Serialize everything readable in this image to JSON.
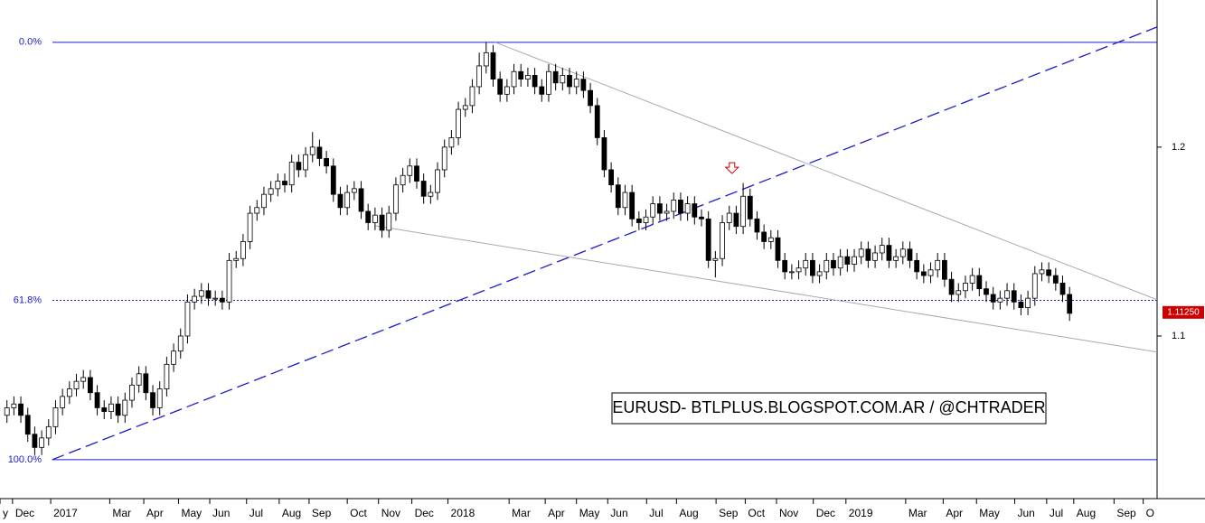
{
  "chart_data": {
    "type": "candlestick",
    "annotation": "EURUSD- BTLPLUS.BLOGSPOT.COM.AR / @CHTRADER",
    "ylim": [
      1.0139,
      1.2779
    ],
    "yticks": [
      1.2,
      1.1
    ],
    "xlim": [
      -1,
      165.6
    ],
    "xticks": [
      {
        "value": -1,
        "label": "y"
      },
      {
        "value": 0.8,
        "label": "Dec"
      },
      {
        "value": 6.3,
        "label": "2017"
      },
      {
        "value": 14.8,
        "label": "Mar"
      },
      {
        "value": 19.7,
        "label": "Apr"
      },
      {
        "value": 24.7,
        "label": "May"
      },
      {
        "value": 29.2,
        "label": "Jun"
      },
      {
        "value": 34.5,
        "label": "Jul"
      },
      {
        "value": 39.2,
        "label": "Aug"
      },
      {
        "value": 43.5,
        "label": "Sep"
      },
      {
        "value": 49.0,
        "label": "Oct"
      },
      {
        "value": 53.5,
        "label": "Nov"
      },
      {
        "value": 58.3,
        "label": "Dec"
      },
      {
        "value": 63.5,
        "label": "2018"
      },
      {
        "value": 72.3,
        "label": "Mar"
      },
      {
        "value": 77.5,
        "label": "Apr"
      },
      {
        "value": 82.0,
        "label": "May"
      },
      {
        "value": 86.5,
        "label": "Jun"
      },
      {
        "value": 92.1,
        "label": "Jul"
      },
      {
        "value": 96.4,
        "label": "Aug"
      },
      {
        "value": 102.1,
        "label": "Sep"
      },
      {
        "value": 106.3,
        "label": "Oct"
      },
      {
        "value": 110.8,
        "label": "Nov"
      },
      {
        "value": 116.1,
        "label": "Dec"
      },
      {
        "value": 120.8,
        "label": "2019"
      },
      {
        "value": 129.4,
        "label": "Mar"
      },
      {
        "value": 134.8,
        "label": "Apr"
      },
      {
        "value": 139.6,
        "label": "May"
      },
      {
        "value": 145.1,
        "label": "Jun"
      },
      {
        "value": 149.7,
        "label": "Jul"
      },
      {
        "value": 153.6,
        "label": "Aug"
      },
      {
        "value": 159.4,
        "label": "Sep"
      },
      {
        "value": 163.6,
        "label": "O"
      }
    ],
    "fib_levels": [
      {
        "label": "0.0%",
        "value": 1.2555,
        "dotted": false
      },
      {
        "label": "61.8%",
        "value": 1.1189,
        "dotted": true
      },
      {
        "label": "100.0%",
        "value": 1.0345,
        "dotted": false
      }
    ],
    "fib_color": "#1a1acc",
    "last_price": {
      "value": 1.1125,
      "label": "1.11250"
    },
    "last_price_color": "#cc0000",
    "trendlines": [
      {
        "x": [
          6.5,
          165.6
        ],
        "y": [
          1.0345,
          1.2636
        ],
        "color": "#1a1acc",
        "dashed": true
      },
      {
        "x": [
          70.3,
          165.6
        ],
        "y": [
          1.2555,
          1.1192
        ],
        "color": "#aaaaaa",
        "dashed": false
      },
      {
        "x": [
          53,
          165.6
        ],
        "y": [
          1.1584,
          1.0915
        ],
        "color": "#aaaaaa",
        "dashed": false
      }
    ],
    "marker": {
      "x": 104.4,
      "y": 1.187,
      "color": "#cc0000"
    },
    "up_color": "#ffffff",
    "down_color": "#000000",
    "ohlc": [
      [
        1.058,
        1.066,
        1.054,
        1.062
      ],
      [
        1.062,
        1.068,
        1.058,
        1.064
      ],
      [
        1.064,
        1.068,
        1.054,
        1.058
      ],
      [
        1.058,
        1.062,
        1.044,
        1.048
      ],
      [
        1.048,
        1.052,
        1.037,
        1.041
      ],
      [
        1.041,
        1.05,
        1.037,
        1.046
      ],
      [
        1.046,
        1.056,
        1.042,
        1.052
      ],
      [
        1.052,
        1.066,
        1.048,
        1.062
      ],
      [
        1.062,
        1.072,
        1.058,
        1.068
      ],
      [
        1.068,
        1.076,
        1.064,
        1.072
      ],
      [
        1.072,
        1.08,
        1.068,
        1.076
      ],
      [
        1.076,
        1.082,
        1.072,
        1.078
      ],
      [
        1.078,
        1.082,
        1.066,
        1.07
      ],
      [
        1.07,
        1.074,
        1.058,
        1.062
      ],
      [
        1.062,
        1.066,
        1.056,
        1.06
      ],
      [
        1.06,
        1.068,
        1.056,
        1.064
      ],
      [
        1.064,
        1.068,
        1.054,
        1.058
      ],
      [
        1.058,
        1.07,
        1.054,
        1.066
      ],
      [
        1.066,
        1.078,
        1.062,
        1.074
      ],
      [
        1.074,
        1.084,
        1.07,
        1.08
      ],
      [
        1.08,
        1.084,
        1.066,
        1.07
      ],
      [
        1.07,
        1.074,
        1.058,
        1.062
      ],
      [
        1.062,
        1.076,
        1.058,
        1.072
      ],
      [
        1.072,
        1.089,
        1.068,
        1.085
      ],
      [
        1.085,
        1.096,
        1.081,
        1.092
      ],
      [
        1.092,
        1.104,
        1.088,
        1.1
      ],
      [
        1.1,
        1.122,
        1.096,
        1.118
      ],
      [
        1.118,
        1.125,
        1.114,
        1.121
      ],
      [
        1.121,
        1.128,
        1.117,
        1.124
      ],
      [
        1.124,
        1.128,
        1.116,
        1.12
      ],
      [
        1.12,
        1.124,
        1.116,
        1.12
      ],
      [
        1.12,
        1.124,
        1.114,
        1.118
      ],
      [
        1.118,
        1.144,
        1.114,
        1.14
      ],
      [
        1.14,
        1.145,
        1.136,
        1.141
      ],
      [
        1.141,
        1.154,
        1.137,
        1.15
      ],
      [
        1.15,
        1.169,
        1.146,
        1.165
      ],
      [
        1.165,
        1.172,
        1.161,
        1.168
      ],
      [
        1.168,
        1.179,
        1.164,
        1.175
      ],
      [
        1.175,
        1.182,
        1.171,
        1.178
      ],
      [
        1.178,
        1.186,
        1.174,
        1.182
      ],
      [
        1.182,
        1.186,
        1.176,
        1.18
      ],
      [
        1.18,
        1.196,
        1.176,
        1.192
      ],
      [
        1.192,
        1.196,
        1.184,
        1.188
      ],
      [
        1.188,
        1.2,
        1.184,
        1.196
      ],
      [
        1.196,
        1.208,
        1.192,
        1.2
      ],
      [
        1.2,
        1.204,
        1.19,
        1.194
      ],
      [
        1.194,
        1.198,
        1.186,
        1.19
      ],
      [
        1.19,
        1.194,
        1.171,
        1.175
      ],
      [
        1.175,
        1.179,
        1.164,
        1.168
      ],
      [
        1.168,
        1.18,
        1.164,
        1.176
      ],
      [
        1.176,
        1.182,
        1.172,
        1.178
      ],
      [
        1.178,
        1.182,
        1.162,
        1.166
      ],
      [
        1.166,
        1.17,
        1.156,
        1.16
      ],
      [
        1.16,
        1.168,
        1.156,
        1.164
      ],
      [
        1.164,
        1.168,
        1.152,
        1.156
      ],
      [
        1.156,
        1.169,
        1.152,
        1.165
      ],
      [
        1.165,
        1.184,
        1.161,
        1.18
      ],
      [
        1.18,
        1.189,
        1.176,
        1.185
      ],
      [
        1.185,
        1.194,
        1.181,
        1.19
      ],
      [
        1.19,
        1.194,
        1.178,
        1.182
      ],
      [
        1.182,
        1.186,
        1.17,
        1.174
      ],
      [
        1.174,
        1.18,
        1.17,
        1.176
      ],
      [
        1.176,
        1.192,
        1.172,
        1.188
      ],
      [
        1.188,
        1.204,
        1.184,
        1.2
      ],
      [
        1.2,
        1.209,
        1.196,
        1.205
      ],
      [
        1.205,
        1.224,
        1.201,
        1.22
      ],
      [
        1.22,
        1.226,
        1.216,
        1.222
      ],
      [
        1.222,
        1.236,
        1.218,
        1.232
      ],
      [
        1.232,
        1.25,
        1.228,
        1.243
      ],
      [
        1.243,
        1.2555,
        1.239,
        1.25
      ],
      [
        1.25,
        1.254,
        1.232,
        1.236
      ],
      [
        1.236,
        1.24,
        1.224,
        1.228
      ],
      [
        1.228,
        1.236,
        1.224,
        1.232
      ],
      [
        1.232,
        1.244,
        1.228,
        1.24
      ],
      [
        1.24,
        1.244,
        1.232,
        1.236
      ],
      [
        1.236,
        1.242,
        1.232,
        1.238
      ],
      [
        1.238,
        1.242,
        1.228,
        1.232
      ],
      [
        1.232,
        1.236,
        1.224,
        1.228
      ],
      [
        1.228,
        1.244,
        1.224,
        1.24
      ],
      [
        1.24,
        1.244,
        1.23,
        1.234
      ],
      [
        1.234,
        1.242,
        1.23,
        1.238
      ],
      [
        1.238,
        1.242,
        1.228,
        1.232
      ],
      [
        1.232,
        1.24,
        1.228,
        1.236
      ],
      [
        1.236,
        1.24,
        1.226,
        1.23
      ],
      [
        1.23,
        1.234,
        1.218,
        1.222
      ],
      [
        1.222,
        1.226,
        1.201,
        1.205
      ],
      [
        1.205,
        1.209,
        1.184,
        1.188
      ],
      [
        1.188,
        1.192,
        1.176,
        1.18
      ],
      [
        1.18,
        1.184,
        1.164,
        1.168
      ],
      [
        1.168,
        1.18,
        1.164,
        1.176
      ],
      [
        1.176,
        1.18,
        1.158,
        1.162
      ],
      [
        1.162,
        1.166,
        1.156,
        1.16
      ],
      [
        1.16,
        1.167,
        1.156,
        1.163
      ],
      [
        1.163,
        1.174,
        1.159,
        1.17
      ],
      [
        1.17,
        1.174,
        1.161,
        1.165
      ],
      [
        1.165,
        1.17,
        1.161,
        1.166
      ],
      [
        1.166,
        1.176,
        1.162,
        1.172
      ],
      [
        1.172,
        1.176,
        1.161,
        1.165
      ],
      [
        1.165,
        1.174,
        1.161,
        1.17
      ],
      [
        1.17,
        1.174,
        1.159,
        1.163
      ],
      [
        1.163,
        1.167,
        1.158,
        1.162
      ],
      [
        1.162,
        1.166,
        1.136,
        1.14
      ],
      [
        1.14,
        1.145,
        1.131,
        1.141
      ],
      [
        1.141,
        1.164,
        1.137,
        1.16
      ],
      [
        1.16,
        1.169,
        1.156,
        1.165
      ],
      [
        1.165,
        1.169,
        1.154,
        1.158
      ],
      [
        1.158,
        1.181,
        1.154,
        1.174
      ],
      [
        1.174,
        1.178,
        1.158,
        1.162
      ],
      [
        1.162,
        1.166,
        1.151,
        1.155
      ],
      [
        1.155,
        1.159,
        1.146,
        1.15
      ],
      [
        1.15,
        1.156,
        1.146,
        1.152
      ],
      [
        1.152,
        1.156,
        1.136,
        1.14
      ],
      [
        1.14,
        1.144,
        1.13,
        1.134
      ],
      [
        1.134,
        1.138,
        1.13,
        1.134
      ],
      [
        1.134,
        1.14,
        1.13,
        1.136
      ],
      [
        1.136,
        1.144,
        1.132,
        1.14
      ],
      [
        1.14,
        1.144,
        1.128,
        1.132
      ],
      [
        1.132,
        1.138,
        1.128,
        1.134
      ],
      [
        1.134,
        1.144,
        1.13,
        1.14
      ],
      [
        1.14,
        1.144,
        1.132,
        1.136
      ],
      [
        1.136,
        1.146,
        1.132,
        1.142
      ],
      [
        1.142,
        1.146,
        1.134,
        1.138
      ],
      [
        1.138,
        1.146,
        1.134,
        1.142
      ],
      [
        1.142,
        1.15,
        1.138,
        1.146
      ],
      [
        1.146,
        1.15,
        1.136,
        1.14
      ],
      [
        1.14,
        1.148,
        1.136,
        1.144
      ],
      [
        1.144,
        1.152,
        1.14,
        1.148
      ],
      [
        1.148,
        1.152,
        1.136,
        1.14
      ],
      [
        1.14,
        1.146,
        1.136,
        1.142
      ],
      [
        1.142,
        1.15,
        1.138,
        1.146
      ],
      [
        1.146,
        1.15,
        1.136,
        1.14
      ],
      [
        1.14,
        1.144,
        1.13,
        1.134
      ],
      [
        1.134,
        1.138,
        1.128,
        1.132
      ],
      [
        1.132,
        1.139,
        1.128,
        1.135
      ],
      [
        1.135,
        1.144,
        1.131,
        1.14
      ],
      [
        1.14,
        1.144,
        1.126,
        1.13
      ],
      [
        1.13,
        1.134,
        1.118,
        1.122
      ],
      [
        1.122,
        1.128,
        1.118,
        1.124
      ],
      [
        1.124,
        1.132,
        1.12,
        1.128
      ],
      [
        1.128,
        1.136,
        1.124,
        1.132
      ],
      [
        1.132,
        1.136,
        1.121,
        1.125
      ],
      [
        1.125,
        1.129,
        1.118,
        1.122
      ],
      [
        1.122,
        1.126,
        1.114,
        1.118
      ],
      [
        1.118,
        1.124,
        1.114,
        1.12
      ],
      [
        1.12,
        1.128,
        1.116,
        1.124
      ],
      [
        1.124,
        1.128,
        1.114,
        1.118
      ],
      [
        1.118,
        1.122,
        1.111,
        1.115
      ],
      [
        1.115,
        1.124,
        1.111,
        1.12
      ],
      [
        1.12,
        1.137,
        1.116,
        1.133
      ],
      [
        1.133,
        1.139,
        1.129,
        1.135
      ],
      [
        1.135,
        1.139,
        1.128,
        1.132
      ],
      [
        1.132,
        1.136,
        1.124,
        1.128
      ],
      [
        1.128,
        1.132,
        1.118,
        1.122
      ],
      [
        1.122,
        1.126,
        1.108,
        1.112
      ]
    ]
  }
}
